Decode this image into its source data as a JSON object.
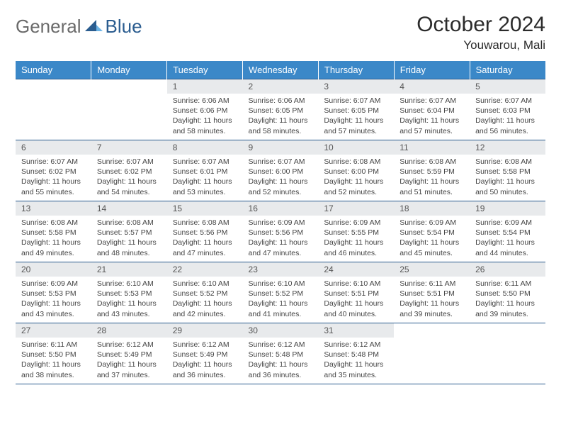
{
  "logo": {
    "text1": "General",
    "text2": "Blue"
  },
  "title": "October 2024",
  "location": "Youwarou, Mali",
  "colors": {
    "header_bg": "#3b88c8",
    "header_text": "#ffffff",
    "border": "#2a5c8f",
    "daynum_bg": "#e8eaec",
    "logo_gray": "#6a6a6a",
    "logo_blue": "#2a5c8f"
  },
  "daysOfWeek": [
    "Sunday",
    "Monday",
    "Tuesday",
    "Wednesday",
    "Thursday",
    "Friday",
    "Saturday"
  ],
  "weeks": [
    [
      null,
      null,
      {
        "n": "1",
        "sr": "6:06 AM",
        "ss": "6:06 PM",
        "dl": "11 hours and 58 minutes."
      },
      {
        "n": "2",
        "sr": "6:06 AM",
        "ss": "6:05 PM",
        "dl": "11 hours and 58 minutes."
      },
      {
        "n": "3",
        "sr": "6:07 AM",
        "ss": "6:05 PM",
        "dl": "11 hours and 57 minutes."
      },
      {
        "n": "4",
        "sr": "6:07 AM",
        "ss": "6:04 PM",
        "dl": "11 hours and 57 minutes."
      },
      {
        "n": "5",
        "sr": "6:07 AM",
        "ss": "6:03 PM",
        "dl": "11 hours and 56 minutes."
      }
    ],
    [
      {
        "n": "6",
        "sr": "6:07 AM",
        "ss": "6:02 PM",
        "dl": "11 hours and 55 minutes."
      },
      {
        "n": "7",
        "sr": "6:07 AM",
        "ss": "6:02 PM",
        "dl": "11 hours and 54 minutes."
      },
      {
        "n": "8",
        "sr": "6:07 AM",
        "ss": "6:01 PM",
        "dl": "11 hours and 53 minutes."
      },
      {
        "n": "9",
        "sr": "6:07 AM",
        "ss": "6:00 PM",
        "dl": "11 hours and 52 minutes."
      },
      {
        "n": "10",
        "sr": "6:08 AM",
        "ss": "6:00 PM",
        "dl": "11 hours and 52 minutes."
      },
      {
        "n": "11",
        "sr": "6:08 AM",
        "ss": "5:59 PM",
        "dl": "11 hours and 51 minutes."
      },
      {
        "n": "12",
        "sr": "6:08 AM",
        "ss": "5:58 PM",
        "dl": "11 hours and 50 minutes."
      }
    ],
    [
      {
        "n": "13",
        "sr": "6:08 AM",
        "ss": "5:58 PM",
        "dl": "11 hours and 49 minutes."
      },
      {
        "n": "14",
        "sr": "6:08 AM",
        "ss": "5:57 PM",
        "dl": "11 hours and 48 minutes."
      },
      {
        "n": "15",
        "sr": "6:08 AM",
        "ss": "5:56 PM",
        "dl": "11 hours and 47 minutes."
      },
      {
        "n": "16",
        "sr": "6:09 AM",
        "ss": "5:56 PM",
        "dl": "11 hours and 47 minutes."
      },
      {
        "n": "17",
        "sr": "6:09 AM",
        "ss": "5:55 PM",
        "dl": "11 hours and 46 minutes."
      },
      {
        "n": "18",
        "sr": "6:09 AM",
        "ss": "5:54 PM",
        "dl": "11 hours and 45 minutes."
      },
      {
        "n": "19",
        "sr": "6:09 AM",
        "ss": "5:54 PM",
        "dl": "11 hours and 44 minutes."
      }
    ],
    [
      {
        "n": "20",
        "sr": "6:09 AM",
        "ss": "5:53 PM",
        "dl": "11 hours and 43 minutes."
      },
      {
        "n": "21",
        "sr": "6:10 AM",
        "ss": "5:53 PM",
        "dl": "11 hours and 43 minutes."
      },
      {
        "n": "22",
        "sr": "6:10 AM",
        "ss": "5:52 PM",
        "dl": "11 hours and 42 minutes."
      },
      {
        "n": "23",
        "sr": "6:10 AM",
        "ss": "5:52 PM",
        "dl": "11 hours and 41 minutes."
      },
      {
        "n": "24",
        "sr": "6:10 AM",
        "ss": "5:51 PM",
        "dl": "11 hours and 40 minutes."
      },
      {
        "n": "25",
        "sr": "6:11 AM",
        "ss": "5:51 PM",
        "dl": "11 hours and 39 minutes."
      },
      {
        "n": "26",
        "sr": "6:11 AM",
        "ss": "5:50 PM",
        "dl": "11 hours and 39 minutes."
      }
    ],
    [
      {
        "n": "27",
        "sr": "6:11 AM",
        "ss": "5:50 PM",
        "dl": "11 hours and 38 minutes."
      },
      {
        "n": "28",
        "sr": "6:12 AM",
        "ss": "5:49 PM",
        "dl": "11 hours and 37 minutes."
      },
      {
        "n": "29",
        "sr": "6:12 AM",
        "ss": "5:49 PM",
        "dl": "11 hours and 36 minutes."
      },
      {
        "n": "30",
        "sr": "6:12 AM",
        "ss": "5:48 PM",
        "dl": "11 hours and 36 minutes."
      },
      {
        "n": "31",
        "sr": "6:12 AM",
        "ss": "5:48 PM",
        "dl": "11 hours and 35 minutes."
      },
      null,
      null
    ]
  ],
  "labels": {
    "sunrise": "Sunrise:",
    "sunset": "Sunset:",
    "daylight": "Daylight:"
  }
}
